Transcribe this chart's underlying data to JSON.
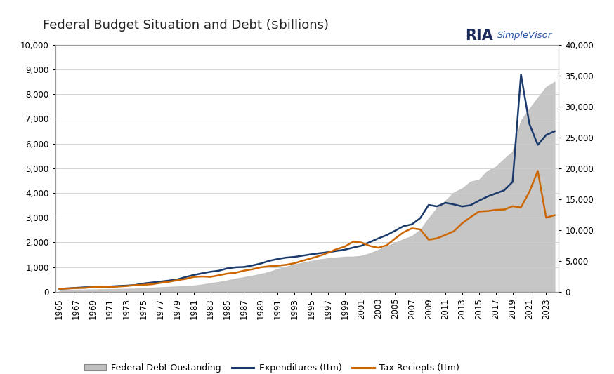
{
  "title": "Federal Budget Situation and Debt ($billions)",
  "years": [
    1965,
    1966,
    1967,
    1968,
    1969,
    1970,
    1971,
    1972,
    1973,
    1974,
    1975,
    1976,
    1977,
    1978,
    1979,
    1980,
    1981,
    1982,
    1983,
    1984,
    1985,
    1986,
    1987,
    1988,
    1989,
    1990,
    1991,
    1992,
    1993,
    1994,
    1995,
    1996,
    1997,
    1998,
    1999,
    2000,
    2001,
    2002,
    2003,
    2004,
    2005,
    2006,
    2007,
    2008,
    2009,
    2010,
    2011,
    2012,
    2013,
    2014,
    2015,
    2016,
    2017,
    2018,
    2019,
    2020,
    2021,
    2022,
    2023,
    2024
  ],
  "federal_debt": [
    317,
    320,
    326,
    347,
    354,
    381,
    408,
    436,
    468,
    486,
    542,
    629,
    706,
    777,
    833,
    909,
    995,
    1142,
    1377,
    1573,
    1823,
    2121,
    2346,
    2601,
    2858,
    3207,
    3666,
    4065,
    4412,
    4693,
    4974,
    5225,
    5413,
    5526,
    5657,
    5674,
    5807,
    6228,
    6783,
    7379,
    7933,
    8507,
    9008,
    10025,
    11910,
    13562,
    14764,
    16066,
    16738,
    17824,
    18151,
    19573,
    20245,
    21516,
    22719,
    27748,
    29617,
    31419,
    33167,
    34000
  ],
  "expenditures": [
    118,
    135,
    158,
    178,
    184,
    196,
    211,
    231,
    247,
    269,
    332,
    372,
    409,
    449,
    493,
    591,
    678,
    746,
    808,
    852,
    946,
    990,
    1004,
    1065,
    1144,
    1253,
    1324,
    1382,
    1410,
    1462,
    1516,
    1561,
    1601,
    1652,
    1702,
    1789,
    1863,
    2011,
    2160,
    2293,
    2472,
    2655,
    2729,
    2983,
    3518,
    3456,
    3603,
    3537,
    3455,
    3506,
    3688,
    3854,
    3982,
    4108,
    4447,
    8800,
    6800,
    5950,
    6350,
    6500
  ],
  "tax_receipts": [
    116,
    130,
    149,
    153,
    187,
    193,
    188,
    208,
    232,
    263,
    279,
    300,
    356,
    400,
    463,
    517,
    599,
    618,
    601,
    666,
    734,
    769,
    854,
    909,
    991,
    1032,
    1055,
    1091,
    1154,
    1258,
    1352,
    1453,
    1579,
    1722,
    1827,
    2025,
    1991,
    1853,
    1782,
    1880,
    2154,
    2407,
    2568,
    2524,
    2105,
    2163,
    2304,
    2450,
    2775,
    3022,
    3250,
    3269,
    3316,
    3329,
    3463,
    3420,
    4047,
    4895,
    3000,
    3100
  ],
  "debt_color": "#c0c0c0",
  "expenditures_color": "#1a3a6b",
  "tax_receipts_color": "#cc6600",
  "background_color": "#ffffff",
  "left_ylim": [
    0,
    10000
  ],
  "right_ylim": [
    0,
    40000
  ],
  "left_yticks": [
    0,
    1000,
    2000,
    3000,
    4000,
    5000,
    6000,
    7000,
    8000,
    9000,
    10000
  ],
  "right_yticks": [
    0,
    5000,
    10000,
    15000,
    20000,
    25000,
    30000,
    35000,
    40000
  ],
  "legend_labels": [
    "Federal Debt Oustanding",
    "Expenditures (ttm)",
    "Tax Reciepts (ttm)"
  ]
}
